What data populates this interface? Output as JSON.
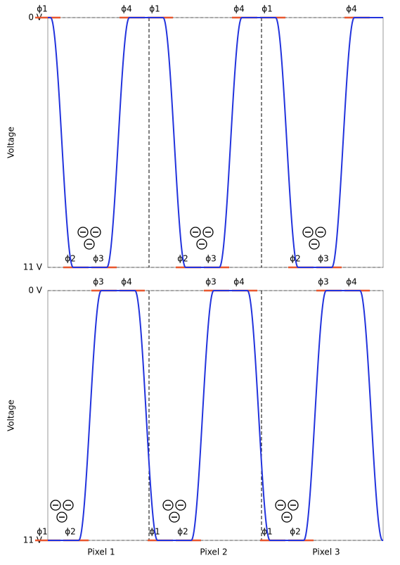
{
  "panels": [
    {
      "y_top_label": "0 V",
      "y_bottom_label": "11 V",
      "y_axis_label": "Voltage",
      "pixels": [
        {
          "top_phases": [
            "ϕ1",
            "ϕ4"
          ],
          "bottom_phases": [
            "ϕ2",
            "ϕ3"
          ]
        },
        {
          "top_phases": [
            "ϕ1",
            "ϕ4"
          ],
          "bottom_phases": [
            "ϕ2",
            "ϕ3"
          ]
        },
        {
          "top_phases": [
            "ϕ1",
            "ϕ4"
          ],
          "bottom_phases": [
            "ϕ2",
            "ϕ3"
          ]
        }
      ]
    },
    {
      "y_top_label": "0 V",
      "y_bottom_label": "11 V",
      "y_axis_label": "Voltage",
      "pixels": [
        {
          "top_phases": [
            "ϕ3",
            "ϕ4"
          ],
          "bottom_phases": [
            "ϕ1",
            "ϕ2"
          ]
        },
        {
          "top_phases": [
            "ϕ3",
            "ϕ4"
          ],
          "bottom_phases": [
            "ϕ1",
            "ϕ2"
          ]
        },
        {
          "top_phases": [
            "ϕ3",
            "ϕ4"
          ],
          "bottom_phases": [
            "ϕ1",
            "ϕ2"
          ]
        }
      ]
    }
  ],
  "x_labels": [
    "Pixel 1",
    "Pixel 2",
    "Pixel 3"
  ]
}
